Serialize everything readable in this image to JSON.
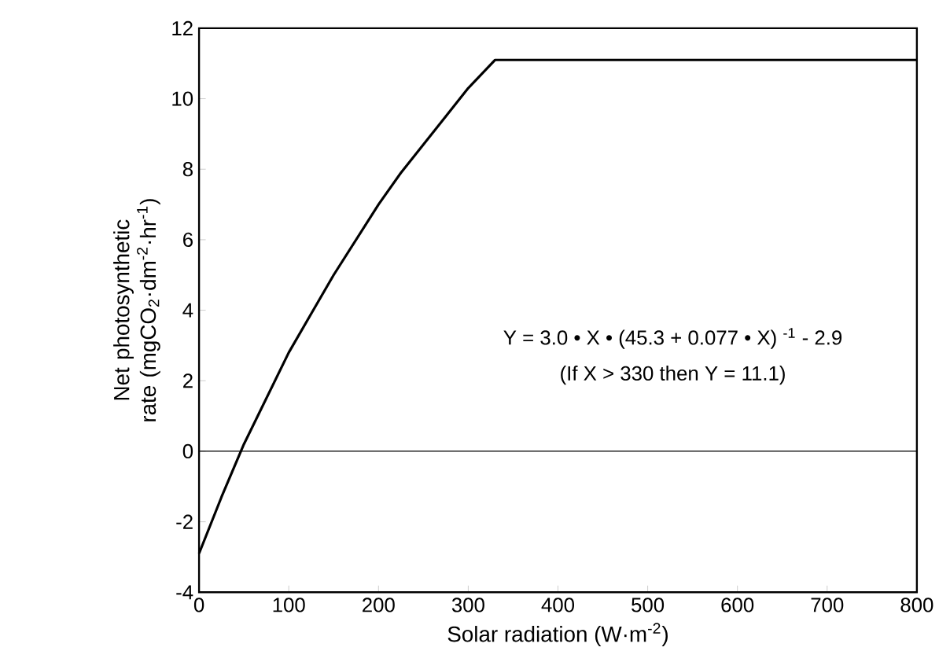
{
  "chart_data": {
    "type": "line",
    "xlabel": "Solar radiation (W·m$^{-2}$)",
    "ylabel": "Net photosynthetic rate (mgCO$_{2}$·dm$^{-2}$·hr$^{-1}$)",
    "x": [
      0,
      25,
      50,
      75,
      100,
      125,
      150,
      175,
      200,
      225,
      250,
      275,
      300,
      330,
      800
    ],
    "series": [
      {
        "color": "#000000",
        "values": [
          -2.9,
          -1.3,
          0.2,
          1.5,
          2.8,
          3.9,
          5.0,
          6.0,
          7.0,
          7.9,
          8.7,
          9.5,
          10.3,
          11.1,
          11.1
        ]
      }
    ],
    "xlim": [
      0,
      800
    ],
    "xticks": [
      0,
      100,
      200,
      300,
      400,
      500,
      600,
      700,
      800
    ],
    "ylim": [
      -4,
      12
    ],
    "yticks": [
      -4,
      -2,
      0,
      2,
      4,
      6,
      8,
      10,
      12
    ],
    "ref_lines": [
      {
        "axis": "y",
        "value": 0,
        "color": "#000000"
      }
    ],
    "annotations": [
      "Y = 3.0 • X • (45.3 + 0.077 • X) $^{-1}$ - 2.9",
      "(If  X > 330  then  Y = 11.1)"
    ],
    "marker": "none",
    "line_style": "solid"
  }
}
